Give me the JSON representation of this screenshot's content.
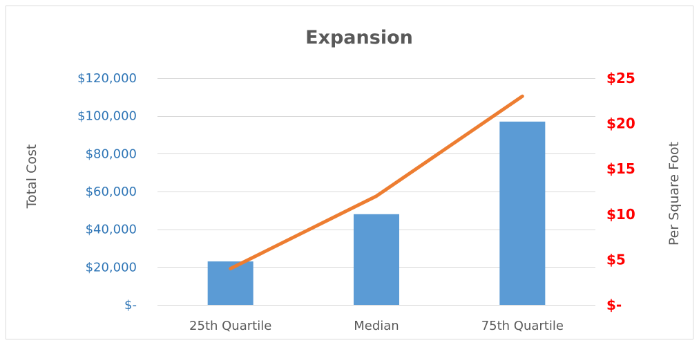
{
  "chart_data": {
    "type": "bar",
    "title": "Expansion",
    "categories": [
      "25th Quartile",
      "Median",
      "75th Quartile"
    ],
    "series": [
      {
        "name": "",
        "type": "bar",
        "axis": "left",
        "color": "#5b9bd5",
        "values": [
          23000,
          48000,
          97000
        ]
      },
      {
        "name": "",
        "type": "line",
        "axis": "right",
        "color": "#ed7d31",
        "values": [
          4,
          12,
          23
        ]
      }
    ],
    "ylabel": "Total Cost",
    "y2label": "Per Square Foot",
    "ylim": [
      0,
      120000
    ],
    "y2lim": [
      0,
      25
    ],
    "yticks": [
      {
        "value": 0,
        "label": "$-"
      },
      {
        "value": 20000,
        "label": "$20,000"
      },
      {
        "value": 40000,
        "label": "$40,000"
      },
      {
        "value": 60000,
        "label": "$60,000"
      },
      {
        "value": 80000,
        "label": "$80,000"
      },
      {
        "value": 100000,
        "label": "$100,000"
      },
      {
        "value": 120000,
        "label": "$120,000"
      }
    ],
    "y2ticks": [
      {
        "value": 0,
        "label": "$-"
      },
      {
        "value": 5,
        "label": "$5"
      },
      {
        "value": 10,
        "label": "$10"
      },
      {
        "value": 15,
        "label": "$15"
      },
      {
        "value": 20,
        "label": "$20"
      },
      {
        "value": 25,
        "label": "$25"
      }
    ],
    "grid": true,
    "colors": {
      "left_axis_text": "#2e75b6",
      "right_axis_text": "#ff0000",
      "gridline": "#d9d9d9",
      "text": "#595959"
    }
  }
}
